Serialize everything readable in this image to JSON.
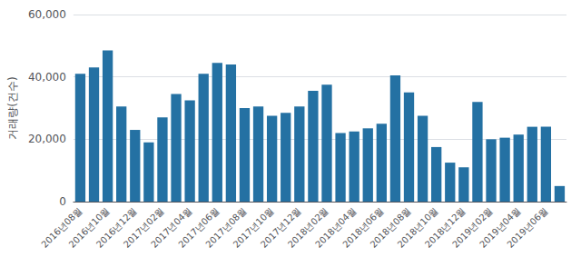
{
  "chart_data": {
    "type": "bar",
    "ylabel": "거래량(건수)",
    "categories": [
      "2016년08월",
      null,
      "2016년10월",
      null,
      "2016년12월",
      null,
      "2017년02월",
      null,
      "2017년04월",
      null,
      "2017년06월",
      null,
      "2017년08월",
      null,
      "2017년10월",
      null,
      "2017년12월",
      null,
      "2018년02월",
      null,
      "2018년04월",
      null,
      "2018년06월",
      null,
      "2018년08월",
      null,
      "2018년10월",
      null,
      "2018년12월",
      null,
      "2019년02월",
      null,
      "2019년04월",
      null,
      "2019년06월",
      null
    ],
    "values": [
      41000,
      43000,
      48500,
      30500,
      23000,
      19000,
      27000,
      34500,
      32500,
      41000,
      44500,
      44000,
      30000,
      30500,
      27500,
      28500,
      30500,
      35500,
      37500,
      22000,
      22500,
      23500,
      25000,
      40500,
      35000,
      27500,
      17500,
      12500,
      11000,
      32000,
      20000,
      20500,
      21500,
      24000,
      24000,
      5000
    ],
    "color": "#2471A3",
    "ylim": [
      0,
      60000
    ],
    "yticks": [
      0,
      {
        "value": 20000,
        "label": "20,000"
      },
      {
        "value": 40000,
        "label": "40,000"
      },
      {
        "value": 60000,
        "label": "60,000"
      }
    ],
    "grid": true
  }
}
